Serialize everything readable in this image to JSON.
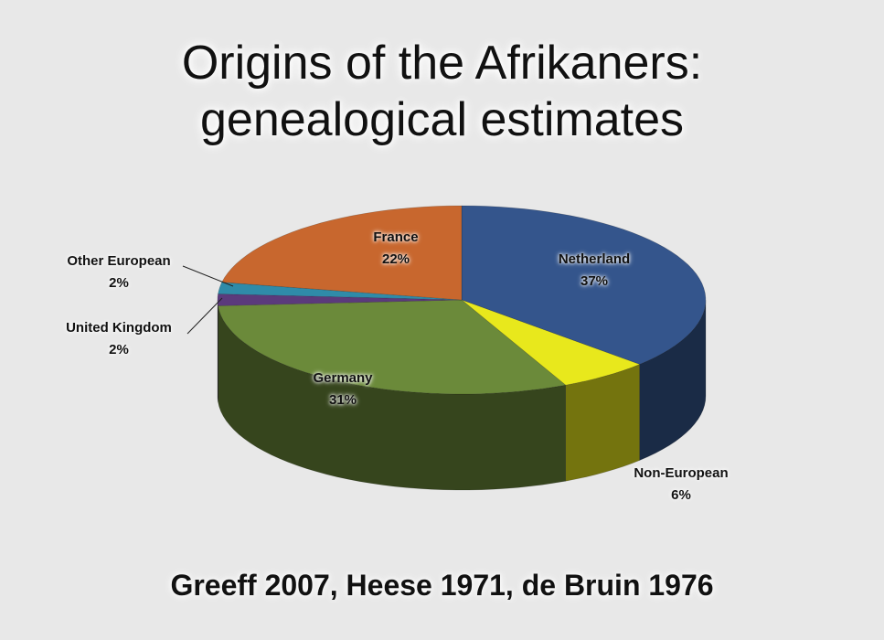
{
  "chart_data": {
    "type": "pie",
    "title": "Origins of the Afrikaners:",
    "subtitle": "genealogical estimates",
    "categories": [
      "Netherland",
      "Non-European",
      "Germany",
      "United Kingdom",
      "Other European",
      "France"
    ],
    "values": [
      37,
      6,
      31,
      2,
      2,
      22
    ],
    "labels": [
      "37%",
      "6%",
      "31%",
      "2%",
      "2%",
      "22%"
    ],
    "colors": [
      "#34558c",
      "#e8e81c",
      "#6b8a3a",
      "#5b3a7c",
      "#2f8ba9",
      "#c8672e"
    ],
    "style": "3d",
    "source": "Greeff 2007, Heese 1971, de Bruin 1976"
  }
}
